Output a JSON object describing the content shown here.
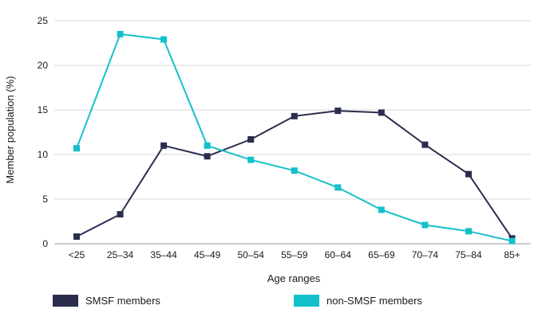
{
  "chart_data": {
    "type": "line",
    "xlabel": "Age ranges",
    "ylabel": "Member population (%)",
    "ylim": [
      0,
      25
    ],
    "yticks": [
      "0",
      "5",
      "10",
      "15",
      "20",
      "25"
    ],
    "categories": [
      "<25",
      "25–34",
      "35–44",
      "45–49",
      "50–54",
      "55–59",
      "60–64",
      "65–69",
      "70–74",
      "75–84",
      "85+"
    ],
    "grid": "horizontal",
    "legend_position": "bottom",
    "series": [
      {
        "name": "SMSF members",
        "color": "#2b2d4e",
        "marker": "square",
        "values": [
          0.8,
          3.3,
          11.0,
          9.8,
          11.7,
          14.3,
          14.9,
          14.7,
          11.1,
          7.8,
          0.6
        ]
      },
      {
        "name": "non-SMSF members",
        "color": "#14c0c9",
        "marker": "square",
        "values": [
          10.7,
          23.5,
          22.9,
          11.0,
          9.4,
          8.2,
          6.3,
          3.8,
          2.1,
          1.4,
          0.3
        ]
      }
    ]
  }
}
